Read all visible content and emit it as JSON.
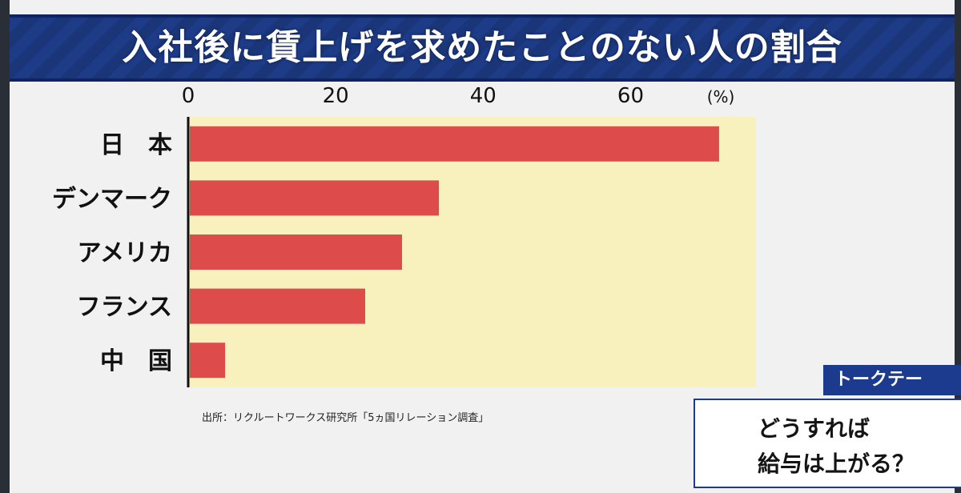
{
  "header": {
    "title": "入社後に賃上げを求めたことのない人の割合"
  },
  "chart_data": {
    "type": "bar",
    "orientation": "horizontal",
    "title": "入社後に賃上げを求めたことのない人の割合",
    "unit": "(%)",
    "categories": [
      "日　本",
      "デンマーク",
      "アメリカ",
      "フランス",
      "中　国"
    ],
    "values": [
      72,
      34,
      29,
      24,
      5
    ],
    "xlim": [
      0,
      77
    ],
    "ticks": [
      0,
      20,
      40,
      60
    ],
    "grid": false,
    "axis_position": "top",
    "colors": {
      "bar": "#de4b4b",
      "plot_background": "#f9f1bd"
    }
  },
  "source": "出所：リクルートワークス研究所「5ヵ国リレーション調査」",
  "talk_theme": {
    "tab_label": "トークテー",
    "line1": "どうすれば",
    "line2": "給与は上がる？"
  }
}
